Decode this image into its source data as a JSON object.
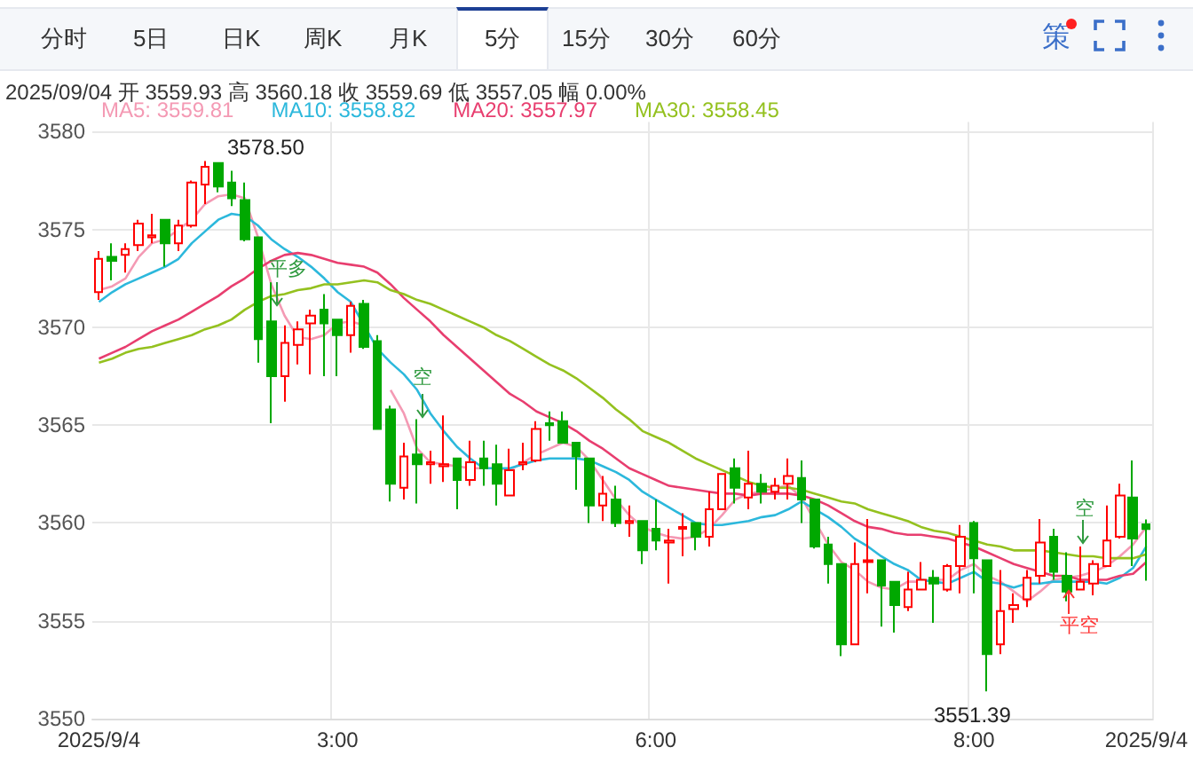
{
  "chart_data": {
    "type": "candlestick",
    "categories": [
      "2025/9/4",
      null,
      null,
      null,
      null,
      null,
      null,
      null,
      null,
      null,
      null,
      null,
      null,
      null,
      null,
      null,
      null,
      null,
      "3:00",
      null,
      null,
      null,
      null,
      null,
      null,
      null,
      null,
      null,
      null,
      null,
      null,
      null,
      null,
      null,
      null,
      null,
      null,
      null,
      null,
      null,
      null,
      null,
      "6:00",
      null,
      null,
      null,
      null,
      null,
      null,
      null,
      null,
      null,
      null,
      null,
      null,
      null,
      null,
      null,
      null,
      null,
      null,
      null,
      null,
      null,
      null,
      null,
      "8:00",
      null,
      null,
      null,
      null,
      null,
      null,
      null,
      null,
      null,
      null,
      null,
      null,
      "2025/9/4"
    ],
    "ohlc": [
      [
        3571.8,
        3573.9,
        3571.4,
        3573.5
      ],
      [
        3573.6,
        3574.3,
        3572.4,
        3573.4
      ],
      [
        3573.7,
        3574.3,
        3572.8,
        3574.0
      ],
      [
        3574.2,
        3575.5,
        3573.9,
        3575.3
      ],
      [
        3574.6,
        3575.8,
        3574.3,
        3574.7
      ],
      [
        3575.5,
        3575.5,
        3573.1,
        3574.3
      ],
      [
        3574.3,
        3575.5,
        3573.9,
        3575.2
      ],
      [
        3575.2,
        3577.5,
        3575.1,
        3577.4
      ],
      [
        3577.3,
        3578.5,
        3576.3,
        3578.2
      ],
      [
        3578.4,
        3578.4,
        3576.9,
        3577.2
      ],
      [
        3577.4,
        3578.0,
        3576.2,
        3576.6
      ],
      [
        3576.5,
        3577.4,
        3574.4,
        3574.5
      ],
      [
        3574.6,
        3574.6,
        3568.2,
        3569.4
      ],
      [
        3570.3,
        3572.3,
        3565.1,
        3567.5
      ],
      [
        3567.5,
        3570.1,
        3566.2,
        3569.2
      ],
      [
        3569.1,
        3570.3,
        3568.1,
        3569.9
      ],
      [
        3570.2,
        3570.9,
        3567.6,
        3570.6
      ],
      [
        3570.9,
        3571.7,
        3567.5,
        3570.2
      ],
      [
        3570.4,
        3570.4,
        3567.5,
        3569.6
      ],
      [
        3569.6,
        3571.3,
        3568.7,
        3571.1
      ],
      [
        3571.2,
        3571.4,
        3568.9,
        3569.0
      ],
      [
        3569.3,
        3569.6,
        3564.8,
        3564.8
      ],
      [
        3565.8,
        3566.0,
        3561.1,
        3562.0
      ],
      [
        3561.8,
        3564.1,
        3561.2,
        3563.4
      ],
      [
        3563.5,
        3565.3,
        3561.0,
        3563.0
      ],
      [
        3563.0,
        3563.7,
        3562.0,
        3563.1
      ],
      [
        3562.9,
        3565.5,
        3562.1,
        3563.0
      ],
      [
        3563.3,
        3563.3,
        3560.7,
        3562.2
      ],
      [
        3562.2,
        3564.2,
        3561.9,
        3563.1
      ],
      [
        3563.3,
        3564.2,
        3561.9,
        3562.8
      ],
      [
        3563.0,
        3564.0,
        3560.9,
        3562.0
      ],
      [
        3561.4,
        3563.8,
        3561.4,
        3562.7
      ],
      [
        3563.0,
        3564.1,
        3562.7,
        3563.1
      ],
      [
        3563.2,
        3565.2,
        3563.1,
        3564.8
      ],
      [
        3565.1,
        3565.7,
        3564.2,
        3565.0
      ],
      [
        3565.2,
        3565.7,
        3564.1,
        3564.1
      ],
      [
        3564.1,
        3564.1,
        3561.7,
        3563.4
      ],
      [
        3563.3,
        3563.3,
        3560.0,
        3560.9
      ],
      [
        3560.9,
        3562.4,
        3560.1,
        3561.5
      ],
      [
        3561.2,
        3561.9,
        3559.8,
        3560.0
      ],
      [
        3560.0,
        3560.9,
        3559.3,
        3560.1
      ],
      [
        3560.1,
        3560.1,
        3557.9,
        3558.6
      ],
      [
        3559.7,
        3561.2,
        3558.6,
        3559.1
      ],
      [
        3559.0,
        3559.7,
        3556.9,
        3559.1
      ],
      [
        3559.7,
        3560.5,
        3558.3,
        3559.8
      ],
      [
        3560.0,
        3560.0,
        3558.6,
        3559.3
      ],
      [
        3559.3,
        3561.6,
        3558.8,
        3560.7
      ],
      [
        3560.7,
        3562.5,
        3560.7,
        3562.5
      ],
      [
        3562.8,
        3563.3,
        3561.0,
        3561.8
      ],
      [
        3561.3,
        3563.7,
        3560.7,
        3562.0
      ],
      [
        3562.0,
        3562.5,
        3561.0,
        3561.6
      ],
      [
        3561.6,
        3562.3,
        3561.2,
        3561.9
      ],
      [
        3562.0,
        3563.3,
        3561.2,
        3562.4
      ],
      [
        3562.3,
        3563.2,
        3560.0,
        3561.2
      ],
      [
        3561.2,
        3561.2,
        3558.7,
        3558.8
      ],
      [
        3558.9,
        3559.3,
        3556.9,
        3557.9
      ],
      [
        3557.9,
        3557.9,
        3553.2,
        3553.8
      ],
      [
        3553.8,
        3559.0,
        3553.8,
        3557.9
      ],
      [
        3558.0,
        3560.2,
        3556.4,
        3558.1
      ],
      [
        3558.1,
        3558.1,
        3554.7,
        3556.8
      ],
      [
        3557.0,
        3557.0,
        3554.4,
        3555.8
      ],
      [
        3555.7,
        3557.5,
        3555.5,
        3556.6
      ],
      [
        3556.6,
        3558.0,
        3556.6,
        3557.1
      ],
      [
        3557.2,
        3557.6,
        3554.9,
        3556.9
      ],
      [
        3556.6,
        3557.9,
        3556.5,
        3557.8
      ],
      [
        3557.8,
        3559.9,
        3556.4,
        3559.3
      ],
      [
        3560.0,
        3560.1,
        3556.4,
        3558.2
      ],
      [
        3558.1,
        3558.1,
        3551.39,
        3553.3
      ],
      [
        3553.8,
        3557.6,
        3553.3,
        3555.5
      ],
      [
        3555.6,
        3556.4,
        3554.9,
        3555.8
      ],
      [
        3556.1,
        3557.6,
        3555.7,
        3557.2
      ],
      [
        3557.3,
        3560.2,
        3556.9,
        3559.0
      ],
      [
        3559.3,
        3559.7,
        3557.1,
        3557.5
      ],
      [
        3557.3,
        3558.5,
        3556.0,
        3556.5
      ],
      [
        3556.6,
        3558.8,
        3556.6,
        3557.0
      ],
      [
        3556.9,
        3558.1,
        3556.3,
        3557.9
      ],
      [
        3557.8,
        3560.9,
        3557.8,
        3559.1
      ],
      [
        3559.3,
        3562.0,
        3559.2,
        3561.4
      ],
      [
        3561.3,
        3563.2,
        3557.8,
        3559.2
      ],
      [
        3559.93,
        3560.18,
        3557.05,
        3559.69
      ]
    ],
    "colors": [
      "#ff0000",
      "#00a800",
      "#ff0000",
      "#ff0000",
      "#ff0000",
      "#00a800",
      "#ff0000",
      "#ff0000",
      "#ff0000",
      "#00a800",
      "#00a800",
      "#00a800",
      "#00a800",
      "#00a800",
      "#ff0000",
      "#ff0000",
      "#ff0000",
      "#00a800",
      "#00a800",
      "#ff0000",
      "#00a800",
      "#00a800",
      "#00a800",
      "#ff0000",
      "#00a800",
      "#ff0000",
      "#ff0000",
      "#00a800",
      "#ff0000",
      "#00a800",
      "#00a800",
      "#ff0000",
      "#ff0000",
      "#ff0000",
      "#00a800",
      "#00a800",
      "#00a800",
      "#00a800",
      "#ff0000",
      "#00a800",
      "#ff0000",
      "#00a800",
      "#00a800",
      "#ff0000",
      "#ff0000",
      "#00a800",
      "#ff0000",
      "#ff0000",
      "#00a800",
      "#ff0000",
      "#00a800",
      "#ff0000",
      "#ff0000",
      "#00a800",
      "#00a800",
      "#00a800",
      "#00a800",
      "#ff0000",
      "#ff0000",
      "#00a800",
      "#00a800",
      "#ff0000",
      "#ff0000",
      "#00a800",
      "#ff0000",
      "#ff0000",
      "#00a800",
      "#00a800",
      "#ff0000",
      "#ff0000",
      "#ff0000",
      "#ff0000",
      "#00a800",
      "#00a800",
      "#ff0000",
      "#ff0000",
      "#ff0000",
      "#ff0000",
      "#00a800",
      "#00a800"
    ],
    "series": [
      {
        "type": "line",
        "name": "MA5: 3559.81",
        "color": "#f49ab4",
        "values": [
          3571.9,
          3572.1,
          3572.5,
          3573.6,
          3574.3,
          3574.5,
          3575.0,
          3575.5,
          3576.3,
          3576.7,
          3576.8,
          3576.6,
          3574.6,
          3572.2,
          3570.6,
          3569.5,
          3569.4,
          3569.6,
          3570.2,
          3570.3,
          3570.1,
          null,
          3566.8,
          3565.6,
          3563.8,
          3563.1,
          3563.0,
          3562.9,
          3562.8,
          3562.8,
          3562.8,
          3562.7,
          3563.1,
          3563.5,
          3563.8,
          3564.1,
          3563.9,
          3563.2,
          3562.2,
          3561.2,
          3560.4,
          3559.8,
          3559.5,
          3559.3,
          3559.2,
          3559.3,
          3559.7,
          3560.4,
          3561.2,
          3561.5,
          3561.6,
          3561.8,
          3561.9,
          3561.3,
          3560.1,
          3558.9,
          3558.0,
          3557.6,
          3557.0,
          3556.7,
          3556.6,
          3557.0,
          3557.0,
          3557.1,
          3557.1,
          3557.6,
          3557.9,
          3557.3,
          3557.0,
          3556.5,
          3556.0,
          3556.5,
          3557.1,
          3557.2,
          3557.3,
          3557.5,
          3557.8,
          3558.3,
          3558.9,
          3559.8
        ]
      },
      {
        "type": "line",
        "name": "MA10: 3558.82",
        "color": "#2cb8dc",
        "values": [
          3571.3,
          3571.8,
          3572.2,
          3572.5,
          3572.8,
          3573.1,
          3573.5,
          3574.3,
          3574.9,
          3575.5,
          3575.8,
          3575.7,
          3575.2,
          3574.5,
          3574.0,
          3573.6,
          3573.1,
          3572.5,
          3571.8,
          3571.3,
          3570.1,
          3568.9,
          3568.2,
          3567.6,
          3566.8,
          3565.6,
          3564.7,
          3563.9,
          3563.3,
          3562.8,
          3562.8,
          3562.8,
          3563.0,
          3563.2,
          3563.3,
          3563.3,
          3563.3,
          3563.2,
          3562.9,
          3562.6,
          3562.2,
          3561.6,
          3561.2,
          3560.8,
          3560.4,
          3560.0,
          3559.9,
          3559.9,
          3560.0,
          3560.1,
          3560.3,
          3560.4,
          3560.7,
          3561.1,
          3560.7,
          3560.3,
          3559.8,
          3559.2,
          3558.8,
          3558.3,
          3557.9,
          3557.6,
          3557.1,
          3557.0,
          3556.9,
          3557.2,
          3557.5,
          3557.0,
          3556.9,
          3556.7,
          3556.9,
          3556.9,
          3557.0,
          3557.0,
          3557.0,
          3557.0,
          3556.9,
          3557.2,
          3557.7,
          3558.8
        ]
      },
      {
        "type": "line",
        "name": "MA20: 3557.97",
        "color": "#e83e6f",
        "values": [
          3568.4,
          3568.7,
          3569.0,
          3569.4,
          3569.8,
          3570.1,
          3570.4,
          3570.8,
          3571.2,
          3571.6,
          3572.1,
          3572.5,
          3573.0,
          3573.4,
          3573.7,
          3573.8,
          3573.7,
          3573.5,
          3573.3,
          3573.2,
          3573.1,
          3572.8,
          3572.2,
          3571.5,
          3570.9,
          3570.3,
          3569.6,
          3569.0,
          3568.4,
          3567.8,
          3567.2,
          3566.6,
          3566.2,
          3565.7,
          3565.4,
          3565.1,
          3564.7,
          3564.2,
          3563.8,
          3563.3,
          3562.8,
          3562.5,
          3562.2,
          3561.9,
          3561.8,
          3561.7,
          3561.6,
          3561.5,
          3561.5,
          3561.4,
          3561.5,
          3561.5,
          3561.5,
          3561.4,
          3561.2,
          3560.9,
          3560.5,
          3560.1,
          3559.8,
          3559.7,
          3559.5,
          3559.4,
          3559.4,
          3559.3,
          3559.2,
          3559.0,
          3558.8,
          3558.5,
          3558.2,
          3557.9,
          3557.7,
          3557.5,
          3557.3,
          3557.3,
          3557.1,
          3557.1,
          3557.1,
          3557.3,
          3557.4,
          3558.0
        ]
      },
      {
        "type": "line",
        "name": "MA30: 3558.45",
        "color": "#94c11f",
        "values": [
          3568.2,
          3568.4,
          3568.7,
          3568.9,
          3569.0,
          3569.2,
          3569.4,
          3569.6,
          3569.9,
          3570.1,
          3570.4,
          3570.9,
          3571.3,
          3571.6,
          3571.7,
          3571.9,
          3572.0,
          3572.2,
          3572.2,
          3572.3,
          3572.4,
          3572.3,
          3571.9,
          3571.7,
          3571.4,
          3571.2,
          3570.9,
          3570.6,
          3570.3,
          3570.0,
          3569.6,
          3569.3,
          3568.9,
          3568.5,
          3568.1,
          3567.8,
          3567.4,
          3566.9,
          3566.4,
          3565.8,
          3565.3,
          3564.7,
          3564.4,
          3564.1,
          3563.7,
          3563.3,
          3563.0,
          3562.7,
          3562.4,
          3562.1,
          3561.9,
          3561.8,
          3561.8,
          3561.7,
          3561.5,
          3561.3,
          3561.1,
          3561.0,
          3560.7,
          3560.5,
          3560.3,
          3560.1,
          3559.8,
          3559.6,
          3559.5,
          3559.3,
          3559.1,
          3558.9,
          3558.8,
          3558.6,
          3558.6,
          3558.6,
          3558.5,
          3558.4,
          3558.3,
          3558.3,
          3558.2,
          3558.2,
          3558.2,
          3558.4
        ]
      }
    ],
    "ylim": [
      3550,
      3580.5
    ],
    "yticks": [
      {
        "value": 3550,
        "label": "3550"
      },
      {
        "value": 3555,
        "label": "3555"
      },
      {
        "value": 3560,
        "label": "3560"
      },
      {
        "value": 3565,
        "label": "3565"
      },
      {
        "value": 3570,
        "label": "3570"
      },
      {
        "value": 3575,
        "label": "3575"
      },
      {
        "value": 3580,
        "label": "3580"
      }
    ],
    "grid": true,
    "legend": "top left",
    "marker": "none",
    "annotations": [
      "2025/09/04  开 3559.93  高 3560.18  收 3559.69  低 3557.05  幅 0.00%",
      "3578.50",
      "3551.39",
      "平多",
      "空",
      "空",
      "平空",
      "分时",
      "5日",
      "日K",
      "周K",
      "月K",
      "5分",
      "15分",
      "30分",
      "60分",
      "策"
    ]
  }
}
